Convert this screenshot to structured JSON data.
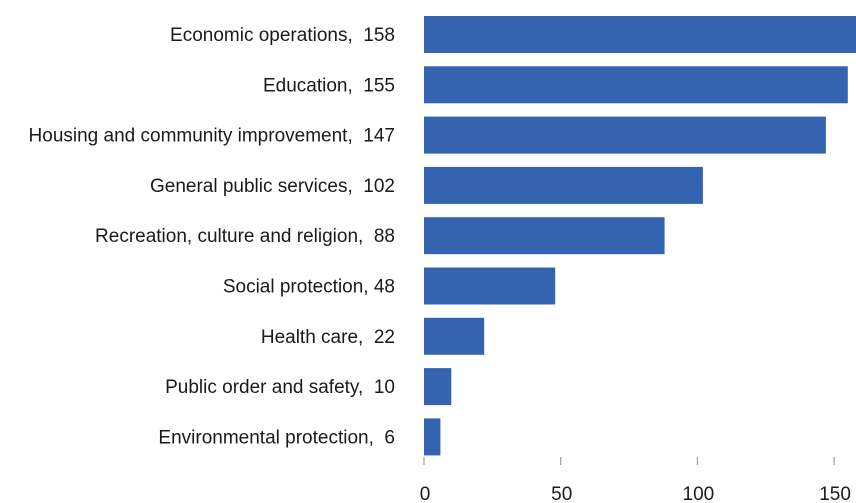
{
  "chart_data": {
    "type": "bar",
    "orientation": "horizontal",
    "categories": [
      "Economic operations",
      "Education",
      "Housing and community improvement",
      "General public services",
      "Recreation, culture and religion",
      "Social protection",
      "Health care",
      "Public order and safety",
      "Environmental protection"
    ],
    "values": [
      158,
      155,
      147,
      102,
      88,
      48,
      22,
      10,
      6
    ],
    "labels": [
      "Economic operations,  158",
      "Education,  155",
      "Housing and community improvement,  147",
      "General public services,  102",
      "Recreation, culture and religion,  88",
      "Social protection, 48",
      "Health care,  22",
      "Public order and safety,  10",
      "Environmental protection,  6"
    ],
    "xticks": [
      0,
      50,
      100,
      150
    ],
    "xlim": [
      0,
      158
    ],
    "title": "",
    "xlabel": "",
    "ylabel": "",
    "grid": false,
    "colors": {
      "bar": "#3464b0",
      "tick": "#8c8c8c",
      "text": "#1a1a1a"
    }
  }
}
